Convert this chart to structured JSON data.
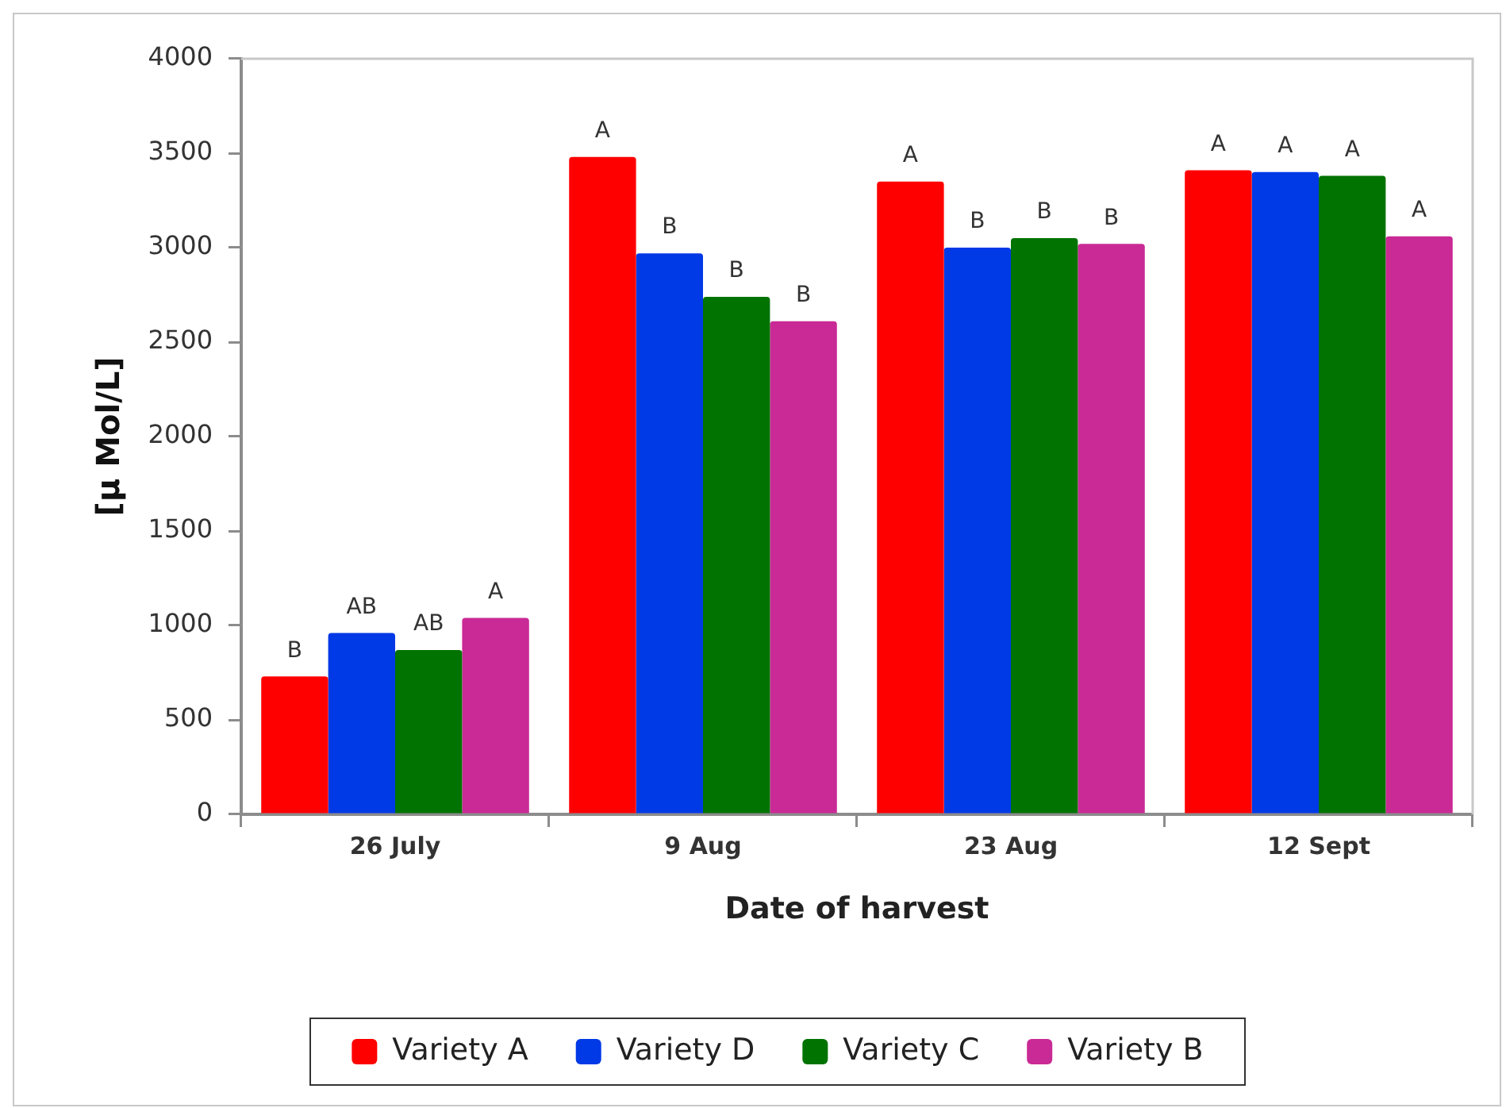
{
  "chart_data": {
    "type": "bar",
    "xlabel": "Date of harvest",
    "ylabel": "[μ Mol/L]",
    "categories": [
      "26 July",
      "9 Aug",
      "23 Aug",
      "12 Sept"
    ],
    "series": [
      {
        "name": "Variety A",
        "color": "#ff0000",
        "values": [
          730,
          3480,
          3350,
          3410
        ],
        "value_labels": [
          "B",
          "A",
          "A",
          "A"
        ]
      },
      {
        "name": "Variety D",
        "color": "#0039e6",
        "values": [
          960,
          2970,
          3000,
          3400
        ],
        "value_labels": [
          "AB",
          "B",
          "B",
          "A"
        ]
      },
      {
        "name": "Variety C",
        "color": "#007300",
        "values": [
          870,
          2740,
          3050,
          3380
        ],
        "value_labels": [
          "AB",
          "B",
          "B",
          "A"
        ]
      },
      {
        "name": "Variety B",
        "color": "#c92a95",
        "values": [
          1040,
          2610,
          3020,
          3060
        ],
        "value_labels": [
          "A",
          "B",
          "B",
          "A"
        ]
      }
    ],
    "ylim": [
      0,
      4000
    ],
    "yticks": [
      0,
      500,
      1000,
      1500,
      2000,
      2500,
      3000,
      3500,
      4000
    ],
    "legend": "bottom"
  }
}
